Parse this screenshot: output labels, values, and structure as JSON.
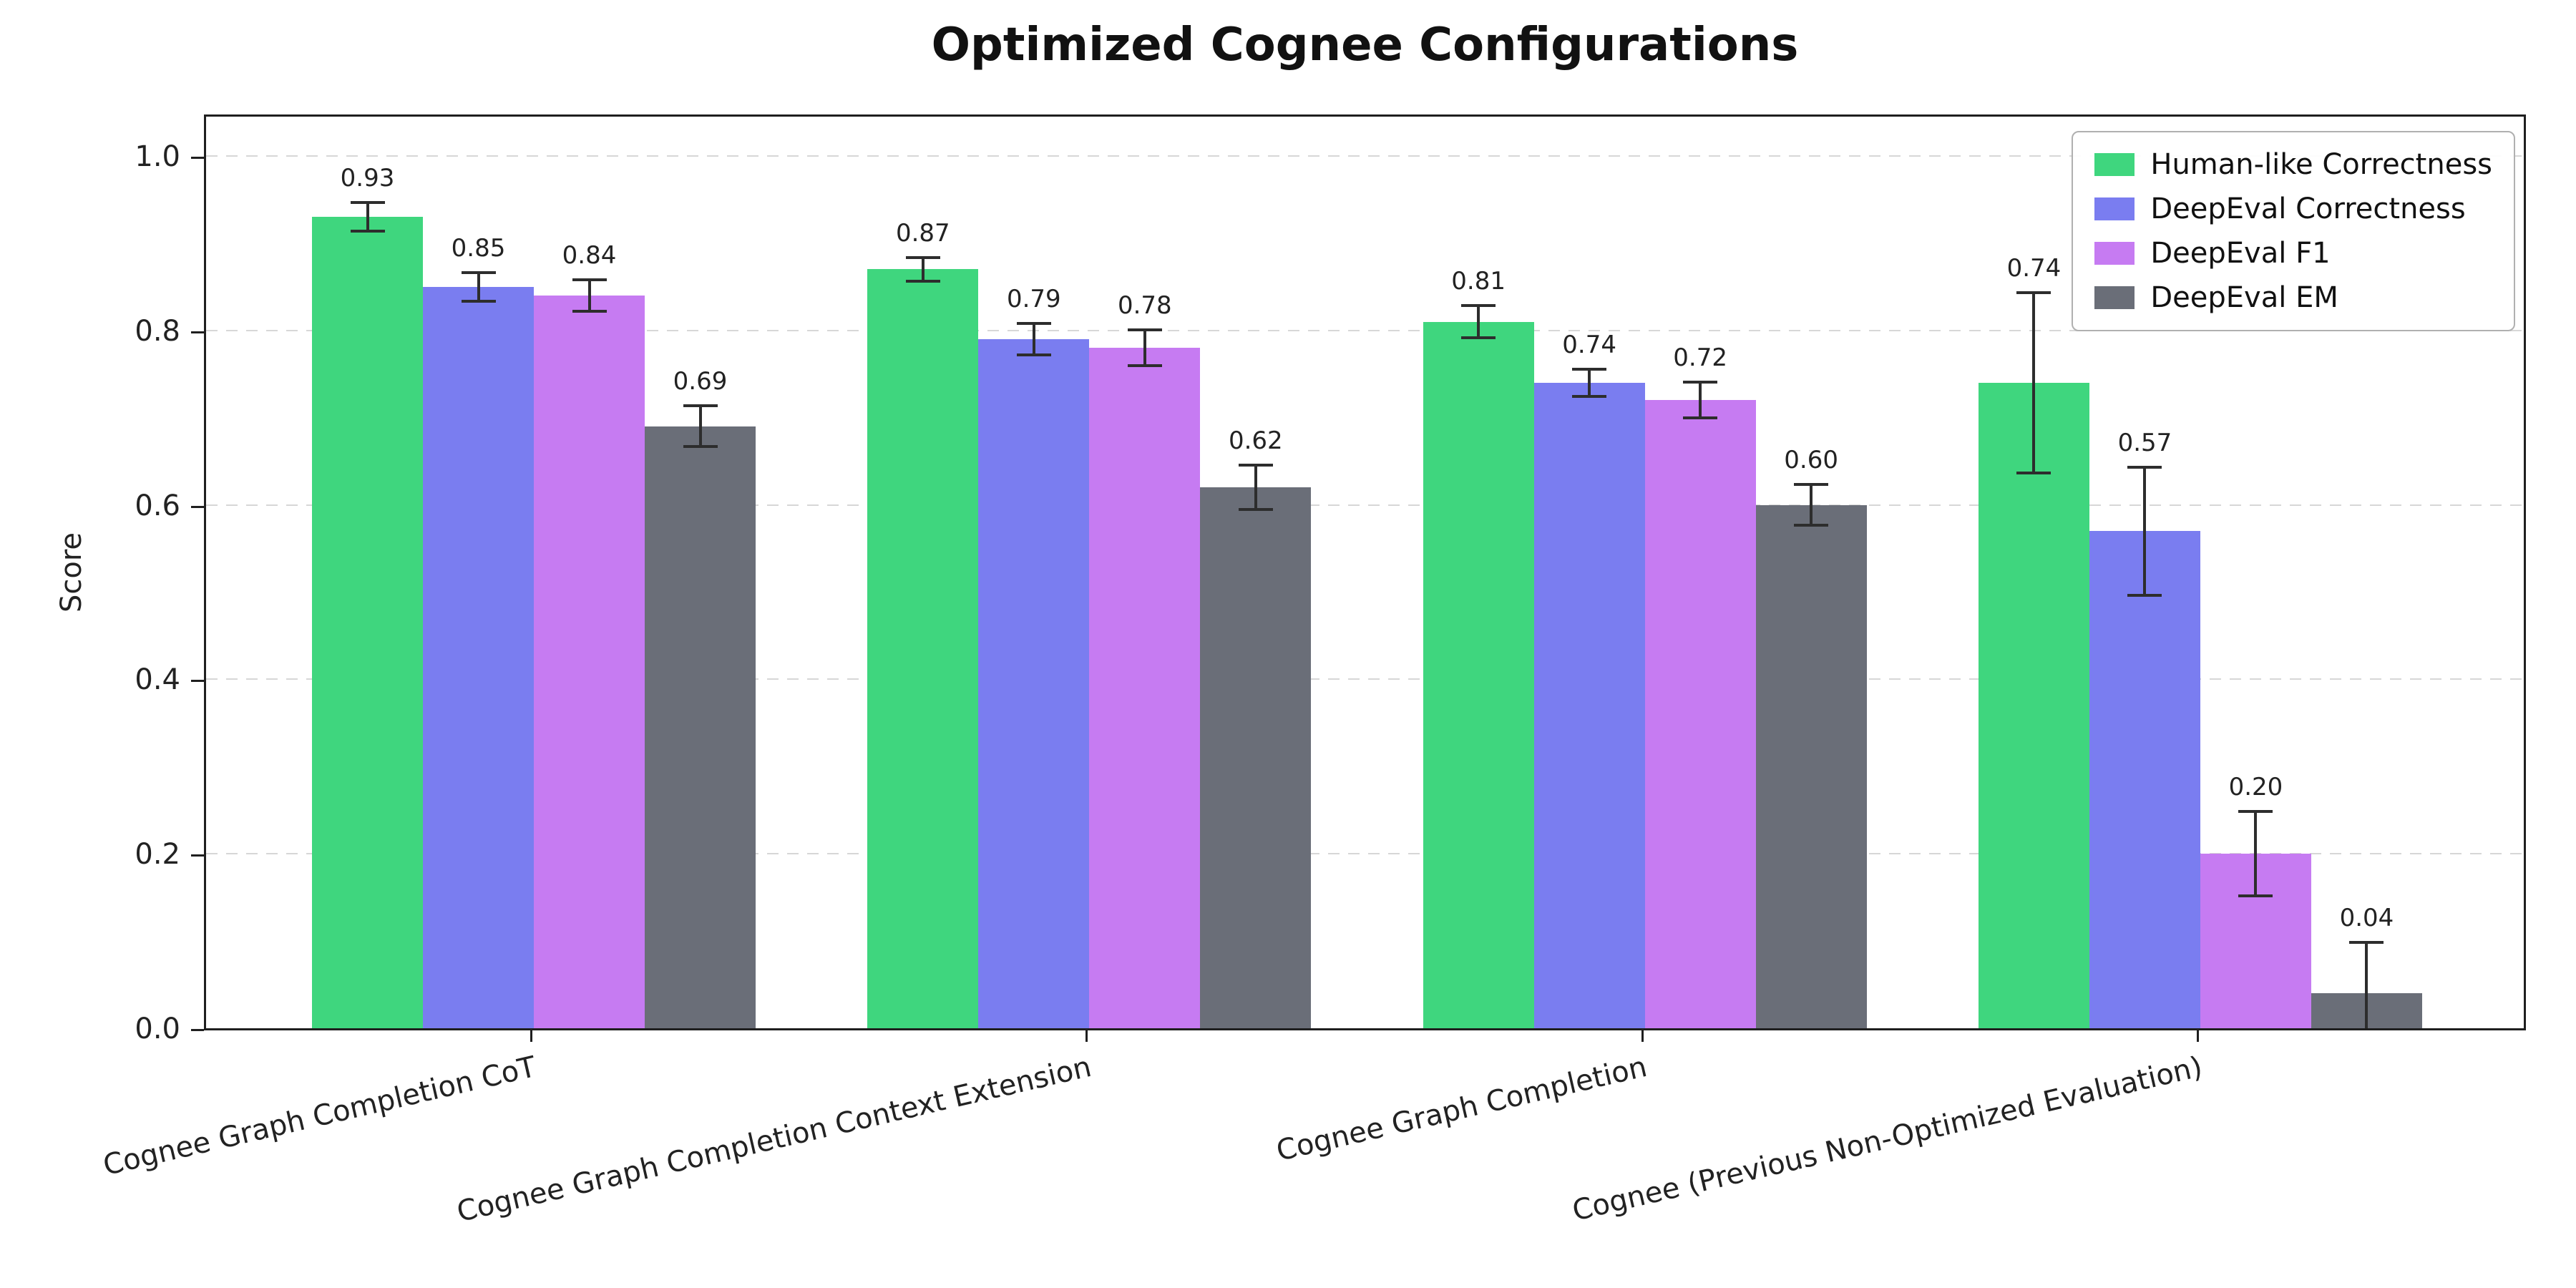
{
  "chart_data": {
    "type": "bar",
    "title": "Optimized Cognee Configurations",
    "xlabel": "",
    "ylabel": "Score",
    "ylim": [
      0,
      1.05
    ],
    "yticks": [
      0.0,
      0.2,
      0.4,
      0.6,
      0.8,
      1.0
    ],
    "grid": "horizontal-dashed",
    "legend_position": "upper-right",
    "categories": [
      "Cognee Graph Completion CoT",
      "Cognee Graph Completion Context Extension",
      "Cognee Graph Completion",
      "Cognee (Previous Non-Optimized Evaluation)"
    ],
    "series": [
      {
        "name": "Human-like Correctness",
        "color": "#3fd67e",
        "values": [
          0.93,
          0.87,
          0.81,
          0.74
        ],
        "errors": [
          0.018,
          0.015,
          0.02,
          0.105
        ]
      },
      {
        "name": "DeepEval Correctness",
        "color": "#7a7df0",
        "values": [
          0.85,
          0.79,
          0.74,
          0.57
        ],
        "errors": [
          0.018,
          0.02,
          0.017,
          0.075
        ]
      },
      {
        "name": "DeepEval F1",
        "color": "#c67bf2",
        "values": [
          0.84,
          0.78,
          0.72,
          0.2
        ],
        "errors": [
          0.02,
          0.022,
          0.022,
          0.05
        ]
      },
      {
        "name": "DeepEval EM",
        "color": "#6a6e78",
        "values": [
          0.69,
          0.62,
          0.6,
          0.04
        ],
        "errors": [
          0.025,
          0.027,
          0.025,
          0.06
        ]
      }
    ]
  }
}
